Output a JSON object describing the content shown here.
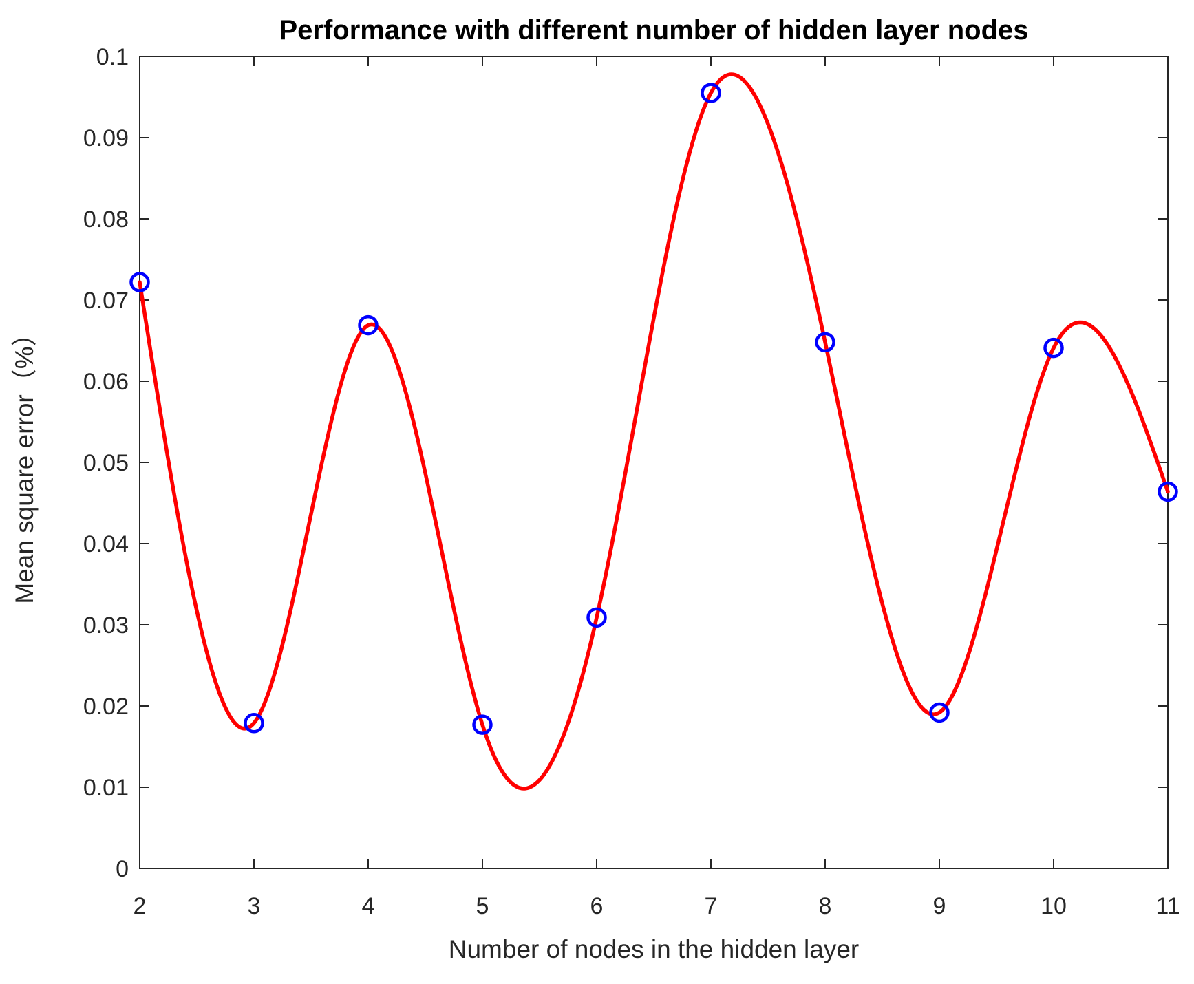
{
  "chart_data": {
    "type": "line",
    "title": "Performance with different number of hidden layer nodes",
    "xlabel": "Number of nodes in the hidden layer",
    "ylabel": "Mean square error（%）",
    "x": [
      2,
      3,
      4,
      5,
      6,
      7,
      8,
      9,
      10,
      11
    ],
    "y": [
      0.0722,
      0.0179,
      0.0669,
      0.0177,
      0.0309,
      0.0955,
      0.0648,
      0.0192,
      0.0641,
      0.0464
    ],
    "interpolation": "cubic-spline",
    "xlim": [
      2,
      11
    ],
    "ylim": [
      0,
      0.1
    ],
    "xticks": {
      "values": [
        2,
        3,
        4,
        5,
        6,
        7,
        8,
        9,
        10,
        11
      ],
      "labels": [
        "2",
        "3",
        "4",
        "5",
        "6",
        "7",
        "8",
        "9",
        "10",
        "11"
      ]
    },
    "yticks": {
      "values": [
        0,
        0.01,
        0.02,
        0.03,
        0.04,
        0.05,
        0.06,
        0.07,
        0.08,
        0.09,
        0.1
      ],
      "labels": [
        "0",
        "0.01",
        "0.02",
        "0.03",
        "0.04",
        "0.05",
        "0.06",
        "0.07",
        "0.08",
        "0.09",
        "0.1"
      ]
    },
    "grid": "off",
    "legend": "none",
    "colors": {
      "line": "#ff0000",
      "marker": "#0000ff",
      "axis": "#262626",
      "title_text": "#000000",
      "background": "#ffffff"
    },
    "marker_style": "open-circle",
    "box": "on"
  }
}
